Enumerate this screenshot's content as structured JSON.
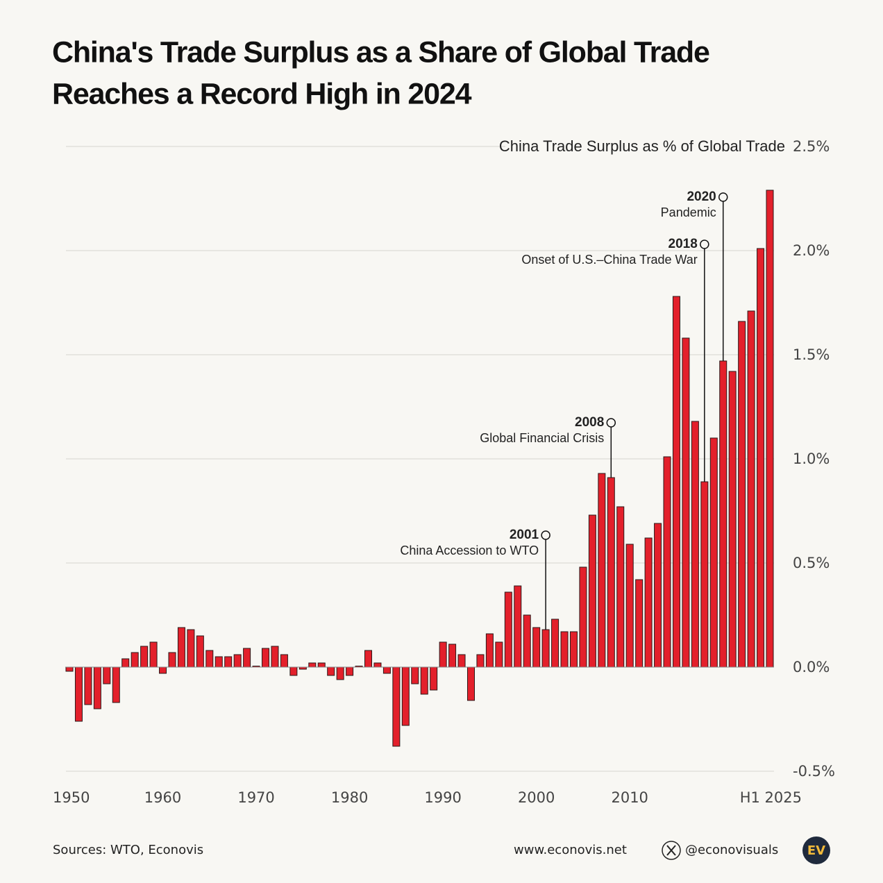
{
  "chart_data": {
    "type": "bar",
    "title": "China's Trade Surplus as a Share of Global Trade",
    "subtitle": "Reaches a Record High in 2024",
    "series": [
      {
        "name": "China Trade Surplus as % of Global Trade",
        "color": "#e3202b",
        "values": [
          -0.02,
          -0.26,
          -0.18,
          -0.2,
          -0.08,
          -0.17,
          0.04,
          0.07,
          0.1,
          0.12,
          -0.03,
          0.07,
          0.19,
          0.18,
          0.15,
          0.08,
          0.05,
          0.05,
          0.06,
          0.09,
          0.005,
          0.09,
          0.1,
          0.06,
          -0.04,
          -0.01,
          0.02,
          0.02,
          -0.04,
          -0.06,
          -0.04,
          0.005,
          0.08,
          0.02,
          -0.03,
          -0.38,
          -0.28,
          -0.08,
          -0.13,
          -0.11,
          0.12,
          0.11,
          0.06,
          -0.16,
          0.06,
          0.16,
          0.12,
          0.36,
          0.39,
          0.25,
          0.19,
          0.18,
          0.23,
          0.17,
          0.17,
          0.48,
          0.73,
          0.93,
          0.91,
          0.77,
          0.59,
          0.42,
          0.62,
          0.69,
          1.01,
          1.78,
          1.58,
          1.18,
          0.89,
          1.1,
          1.47,
          1.42,
          1.66,
          1.71,
          2.01,
          2.29
        ]
      }
    ],
    "x": [
      1950,
      1951,
      1952,
      1953,
      1954,
      1955,
      1956,
      1957,
      1958,
      1959,
      1960,
      1961,
      1962,
      1963,
      1964,
      1965,
      1966,
      1967,
      1968,
      1969,
      1970,
      1971,
      1972,
      1973,
      1974,
      1975,
      1976,
      1977,
      1978,
      1979,
      1980,
      1981,
      1982,
      1983,
      1984,
      1985,
      1986,
      1987,
      1988,
      1989,
      1990,
      1991,
      1992,
      1993,
      1994,
      1995,
      1996,
      1997,
      1998,
      1999,
      2000,
      2001,
      2002,
      2003,
      2004,
      2005,
      2006,
      2007,
      2008,
      2009,
      2010,
      2011,
      2012,
      2013,
      2014,
      2015,
      2016,
      2017,
      2018,
      2019,
      2020,
      2021,
      2022,
      2023,
      2024,
      2025
    ],
    "xlim": [
      1949.5,
      2025.5
    ],
    "xticks": [
      1950,
      1960,
      1970,
      1980,
      1990,
      2000,
      2010,
      {
        "value": 2025,
        "label": "H1 2025"
      }
    ],
    "ylim": [
      -0.5,
      2.5
    ],
    "yticks": [
      {
        "value": -0.5,
        "label": "-0.5%"
      },
      {
        "value": 0,
        "label": "0.0%"
      },
      {
        "value": 0.5,
        "label": "0.5%"
      },
      {
        "value": 1,
        "label": "1.0%"
      },
      {
        "value": 1.5,
        "label": "1.5%"
      },
      {
        "value": 2,
        "label": "2.0%"
      },
      {
        "value": 2.5,
        "label": "2.5%"
      }
    ],
    "grid": true,
    "annotations": [
      {
        "x": 2001,
        "text": "China Accession to WTO"
      },
      {
        "x": 2008,
        "text": "Global Financial Crisis"
      },
      {
        "x": 2018,
        "text": "Onset of U.S.–China Trade War"
      },
      {
        "x": 2020,
        "text": "Pandemic"
      }
    ]
  },
  "footer": {
    "source": "Sources: WTO, Econovis",
    "website": "www.econovis.net",
    "handle": "@econovisuals",
    "logo": "EV"
  }
}
